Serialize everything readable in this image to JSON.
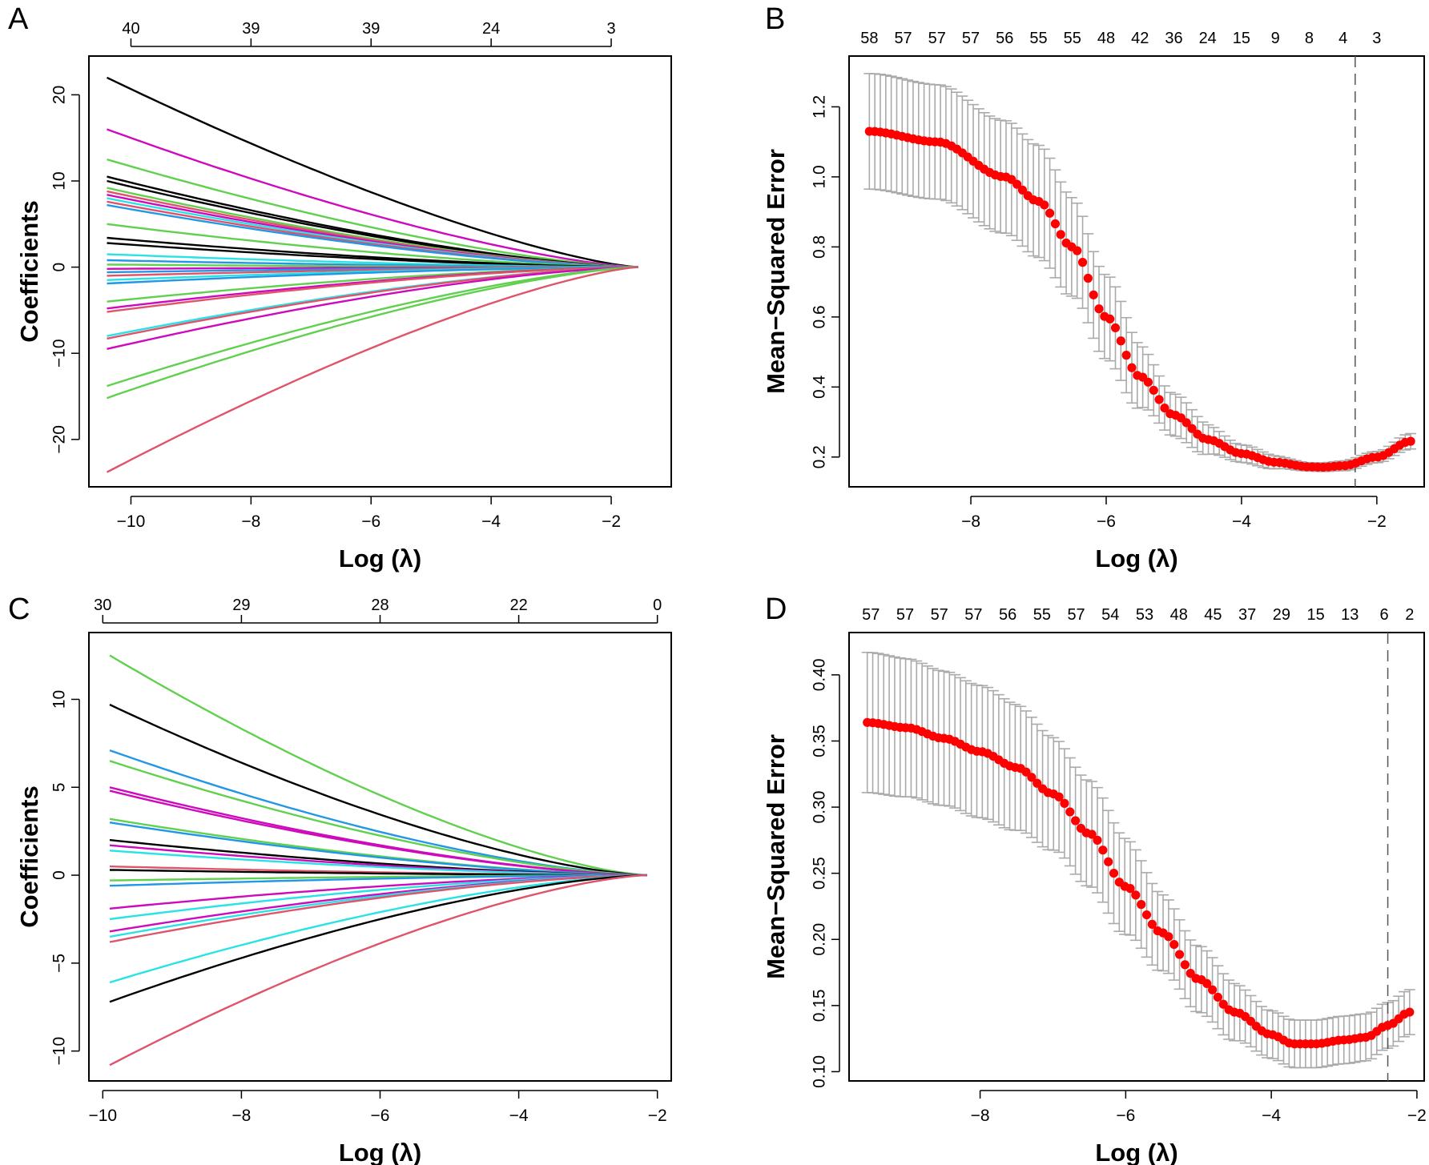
{
  "figure": {
    "panel_labels": [
      "A",
      "B",
      "C",
      "D"
    ]
  },
  "chart_data": [
    {
      "panel": "A",
      "type": "line",
      "xlabel": "Log (λ)",
      "ylabel": "Coefficients",
      "xlim": [
        -10.7,
        -1.0
      ],
      "ylim": [
        -25.5,
        24.5
      ],
      "x_ticks": [
        -10,
        -8,
        -6,
        -4,
        -2
      ],
      "y_ticks": [
        -20,
        -10,
        0,
        10,
        20
      ],
      "top_axis": {
        "positions": [
          -10,
          -8,
          -6,
          -4,
          -2
        ],
        "labels": [
          "40",
          "39",
          "39",
          "24",
          "3"
        ]
      },
      "x_start": -10.4,
      "x_end": -1.55,
      "paths_fraction_of_range_active": 0.57,
      "paths": [
        {
          "start": 22,
          "color": "#000000"
        },
        {
          "start": 16,
          "color": "#cd0bbc"
        },
        {
          "start": 12.5,
          "color": "#61d04f"
        },
        {
          "start": 10.5,
          "color": "#000000"
        },
        {
          "start": 10,
          "color": "#000000"
        },
        {
          "start": 9.2,
          "color": "#61d04f"
        },
        {
          "start": 8.8,
          "color": "#df536b"
        },
        {
          "start": 8.4,
          "color": "#cd0bbc"
        },
        {
          "start": 8,
          "color": "#28e2e5"
        },
        {
          "start": 7.6,
          "color": "#df536b"
        },
        {
          "start": 7.2,
          "color": "#2297e6"
        },
        {
          "start": 5,
          "color": "#61d04f"
        },
        {
          "start": 3.4,
          "color": "#000000"
        },
        {
          "start": 2.8,
          "color": "#000000"
        },
        {
          "start": 1.5,
          "color": "#28e2e5"
        },
        {
          "start": 0.8,
          "color": "#2297e6"
        },
        {
          "start": 0.3,
          "color": "#61d04f"
        },
        {
          "start": -0.2,
          "color": "#cd0bbc"
        },
        {
          "start": -0.6,
          "color": "#2297e6"
        },
        {
          "start": -1.0,
          "color": "#df536b"
        },
        {
          "start": -1.5,
          "color": "#28e2e5"
        },
        {
          "start": -1.9,
          "color": "#2297e6"
        },
        {
          "start": -4,
          "color": "#61d04f"
        },
        {
          "start": -4.8,
          "color": "#cd0bbc"
        },
        {
          "start": -5.2,
          "color": "#df536b"
        },
        {
          "start": -8,
          "color": "#28e2e5"
        },
        {
          "start": -8.3,
          "color": "#df536b"
        },
        {
          "start": -9.5,
          "color": "#cd0bbc"
        },
        {
          "start": -13.8,
          "color": "#61d04f"
        },
        {
          "start": -15.2,
          "color": "#61d04f"
        },
        {
          "start": -23.8,
          "color": "#df536b"
        }
      ]
    },
    {
      "panel": "B",
      "type": "errorbar",
      "xlabel": "Log (λ)",
      "ylabel": "Mean−Squared Error",
      "xlim": [
        -9.8,
        -1.3
      ],
      "ylim": [
        0.115,
        1.345
      ],
      "x_ticks": [
        -8,
        -6,
        -4,
        -2
      ],
      "y_ticks": [
        0.2,
        0.4,
        0.6,
        0.8,
        1.0,
        1.2
      ],
      "top_axis": {
        "positions": [
          -9.5,
          -9,
          -8.5,
          -8,
          -7.5,
          -7,
          -6.5,
          -6,
          -5.5,
          -5,
          -4.5,
          -4,
          -3.5,
          -3,
          -2.5,
          -2
        ],
        "labels": [
          "58",
          "57",
          "57",
          "57",
          "56",
          "55",
          "55",
          "48",
          "42",
          "36",
          "24",
          "15",
          "9",
          "8",
          "4",
          "3"
        ]
      },
      "x_start": -9.5,
      "x_end": -1.5,
      "n_points": 100,
      "mse_anchors": [
        [
          -9.5,
          1.13
        ],
        [
          -8.5,
          1.1
        ],
        [
          -7.5,
          1.0
        ],
        [
          -7.0,
          0.93
        ],
        [
          -6.5,
          0.8
        ],
        [
          -6.0,
          0.6
        ],
        [
          -5.5,
          0.43
        ],
        [
          -5.0,
          0.32
        ],
        [
          -4.5,
          0.25
        ],
        [
          -4.0,
          0.21
        ],
        [
          -3.5,
          0.185
        ],
        [
          -3.0,
          0.172
        ],
        [
          -2.8,
          0.171
        ],
        [
          -2.5,
          0.175
        ],
        [
          -2.0,
          0.2
        ],
        [
          -1.5,
          0.245
        ]
      ],
      "se_anchors": [
        [
          -9.5,
          0.165
        ],
        [
          -7.0,
          0.16
        ],
        [
          -6.0,
          0.12
        ],
        [
          -5.0,
          0.06
        ],
        [
          -4.0,
          0.025
        ],
        [
          -3.0,
          0.012
        ],
        [
          -2.0,
          0.016
        ],
        [
          -1.5,
          0.022
        ]
      ],
      "vline_x": -2.32,
      "point_color": "#ff0000",
      "errorbar_color": "#aaaaaa"
    },
    {
      "panel": "C",
      "type": "line",
      "xlabel": "Log (λ)",
      "ylabel": "Coefficients",
      "xlim": [
        -10.2,
        -1.8
      ],
      "ylim": [
        -11.7,
        13.8
      ],
      "x_ticks": [
        -10,
        -8,
        -6,
        -4,
        -2
      ],
      "y_ticks": [
        -10,
        -5,
        0,
        5,
        10
      ],
      "top_axis": {
        "positions": [
          -10,
          -8,
          -6,
          -4,
          -2
        ],
        "labels": [
          "30",
          "29",
          "28",
          "22",
          "0"
        ]
      },
      "x_start": -9.9,
      "x_end": -2.15,
      "paths_fraction_of_range_active": 0.82,
      "paths": [
        {
          "start": 12.5,
          "color": "#61d04f"
        },
        {
          "start": 9.7,
          "color": "#000000"
        },
        {
          "start": 7.1,
          "color": "#2297e6"
        },
        {
          "start": 6.5,
          "color": "#61d04f"
        },
        {
          "start": 5.0,
          "color": "#cd0bbc"
        },
        {
          "start": 4.8,
          "color": "#cd0bbc"
        },
        {
          "start": 3.2,
          "color": "#61d04f"
        },
        {
          "start": 3.0,
          "color": "#2297e6"
        },
        {
          "start": 2.0,
          "color": "#000000"
        },
        {
          "start": 1.7,
          "color": "#cd0bbc"
        },
        {
          "start": 1.4,
          "color": "#28e2e5"
        },
        {
          "start": 0.5,
          "color": "#df536b"
        },
        {
          "start": 0.3,
          "color": "#000000"
        },
        {
          "start": -0.3,
          "color": "#61d04f"
        },
        {
          "start": -0.6,
          "color": "#2297e6"
        },
        {
          "start": -1.9,
          "color": "#cd0bbc"
        },
        {
          "start": -2.5,
          "color": "#28e2e5"
        },
        {
          "start": -3.2,
          "color": "#cd0bbc"
        },
        {
          "start": -3.5,
          "color": "#28e2e5"
        },
        {
          "start": -3.8,
          "color": "#df536b"
        },
        {
          "start": -6.1,
          "color": "#28e2e5"
        },
        {
          "start": -7.2,
          "color": "#000000"
        },
        {
          "start": -10.8,
          "color": "#df536b"
        }
      ]
    },
    {
      "panel": "D",
      "type": "errorbar",
      "xlabel": "Log (λ)",
      "ylabel": "Mean−Squared Error",
      "xlim": [
        -9.8,
        -1.9
      ],
      "ylim": [
        0.093,
        0.432
      ],
      "x_ticks": [
        -8,
        -6,
        -4,
        -2
      ],
      "y_ticks": [
        0.1,
        0.15,
        0.2,
        0.25,
        0.3,
        0.35,
        0.4
      ],
      "top_axis": {
        "positions": [
          -9.5,
          -9.03,
          -8.56,
          -8.09,
          -7.62,
          -7.15,
          -6.68,
          -6.21,
          -5.74,
          -5.27,
          -4.8,
          -4.33,
          -3.86,
          -3.39,
          -2.92,
          -2.45,
          -2.1
        ],
        "labels": [
          "57",
          "57",
          "57",
          "57",
          "56",
          "55",
          "57",
          "54",
          "53",
          "48",
          "45",
          "37",
          "29",
          "15",
          "13",
          "6",
          "2"
        ]
      },
      "x_start": -9.55,
      "x_end": -2.1,
      "n_points": 100,
      "mse_anchors": [
        [
          -9.55,
          0.364
        ],
        [
          -9.0,
          0.36
        ],
        [
          -8.5,
          0.352
        ],
        [
          -8.0,
          0.342
        ],
        [
          -7.5,
          0.33
        ],
        [
          -7.0,
          0.31
        ],
        [
          -6.5,
          0.28
        ],
        [
          -6.0,
          0.24
        ],
        [
          -5.5,
          0.205
        ],
        [
          -5.0,
          0.17
        ],
        [
          -4.5,
          0.145
        ],
        [
          -4.0,
          0.128
        ],
        [
          -3.7,
          0.121
        ],
        [
          -3.4,
          0.121
        ],
        [
          -3.0,
          0.124
        ],
        [
          -2.7,
          0.126
        ],
        [
          -2.4,
          0.135
        ],
        [
          -2.1,
          0.145
        ]
      ],
      "se_anchors": [
        [
          -9.55,
          0.053
        ],
        [
          -8.0,
          0.05
        ],
        [
          -6.5,
          0.04
        ],
        [
          -5.0,
          0.025
        ],
        [
          -4.0,
          0.018
        ],
        [
          -3.0,
          0.018
        ],
        [
          -2.1,
          0.017
        ]
      ],
      "vline_x": -2.4,
      "point_color": "#ff0000",
      "errorbar_color": "#aaaaaa"
    }
  ]
}
